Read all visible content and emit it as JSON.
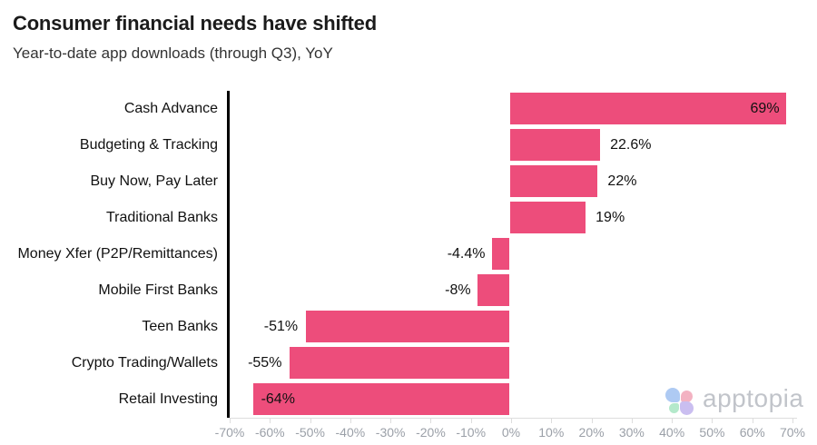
{
  "header": {
    "title": "Consumer financial needs have shifted",
    "subtitle": "Year-to-date app downloads (through Q3), YoY"
  },
  "branding": {
    "logo_text": "apptopia",
    "icon": "apptopia-flower-icon",
    "petal_colors": {
      "top_left": "#aecaf3",
      "top_right": "#f3b2c2",
      "bottom_left": "#b4e9cb",
      "bottom_right": "#cabef0"
    },
    "logo_text_color": "#c1c4ca"
  },
  "chart_data": {
    "type": "bar",
    "orientation": "horizontal",
    "title": "Consumer financial needs have shifted",
    "subtitle": "Year-to-date app downloads (through Q3), YoY",
    "categories": [
      "Cash Advance",
      "Budgeting & Tracking",
      "Buy Now, Pay Later",
      "Traditional Banks",
      "Money Xfer (P2P/Remittances)",
      "Mobile First Banks",
      "Teen Banks",
      "Crypto Trading/Wallets",
      "Retail Investing"
    ],
    "values": [
      69,
      22.6,
      22,
      19,
      -4.4,
      -8,
      -51,
      -55,
      -64
    ],
    "value_labels": [
      "69%",
      "22.6%",
      "22%",
      "19%",
      "-4.4%",
      "-8%",
      "-51%",
      "-55%",
      "-64%"
    ],
    "xlim": [
      -70,
      70
    ],
    "x_tick_step": 10,
    "x_tick_labels": [
      "-70%",
      "-60%",
      "-50%",
      "-40%",
      "-30%",
      "-20%",
      "-10%",
      "0%",
      "10%",
      "20%",
      "30%",
      "40%",
      "50%",
      "60%",
      "70%"
    ],
    "bar_color": "#ed4d7b",
    "value_label_color": "#111111",
    "category_label_color": "#111111",
    "tick_label_color": "#9ba0a8",
    "grid": false,
    "legend": "none"
  }
}
